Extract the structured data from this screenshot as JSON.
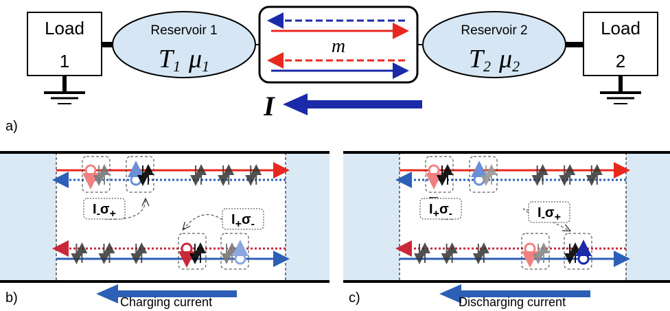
{
  "panel_a": {
    "label": "a)",
    "load_left": {
      "title": "Load",
      "number": "1"
    },
    "reservoir_left": {
      "title": "Reservoir 1",
      "temperature": "T",
      "temperature_sub": "1",
      "potential": "μ",
      "potential_sub": "1"
    },
    "channel_label": "m",
    "reservoir_right": {
      "title": "Reservoir 2",
      "temperature": "T",
      "temperature_sub": "2",
      "potential": "μ",
      "potential_sub": "2"
    },
    "load_right": {
      "title": "Load",
      "number": "2"
    },
    "current_label": "I"
  },
  "panel_b": {
    "label": "b)",
    "current_caption": "Charging current",
    "tags": [
      {
        "main": "I",
        "main_sub": "-",
        "spin": "σ",
        "spin_sub": "+"
      },
      {
        "main": "I",
        "main_sub": "+",
        "spin": "σ",
        "spin_sub": "-"
      }
    ]
  },
  "panel_c": {
    "label": "c)",
    "current_caption": "Discharging current",
    "tags": [
      {
        "main": "I",
        "main_sub": "+",
        "spin": "σ",
        "spin_sub": "-"
      },
      {
        "main": "I",
        "main_sub": "-",
        "spin": "σ",
        "spin_sub": "+"
      }
    ]
  }
}
